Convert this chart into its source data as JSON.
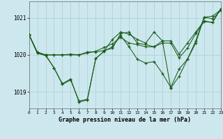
{
  "background_color": "#cce8ee",
  "grid_color": "#aaccd4",
  "line_color": "#1a5c1a",
  "title": "Graphe pression niveau de la mer (hPa)",
  "xlim": [
    0,
    23
  ],
  "ylim": [
    1018.55,
    1021.45
  ],
  "yticks": [
    1019,
    1020,
    1021
  ],
  "ytick_labels": [
    "1019",
    "1020",
    "1021"
  ],
  "series": [
    [
      1020.55,
      1020.05,
      1020.0,
      1020.0,
      1020.0,
      1020.0,
      1020.0,
      1020.05,
      1020.1,
      1020.2,
      1020.3,
      1020.48,
      1020.32,
      1020.28,
      1020.22,
      1020.22,
      1020.32,
      1020.32,
      1019.92,
      1020.18,
      1020.58,
      1020.9,
      1020.88,
      1021.25
    ],
    [
      1020.55,
      1020.05,
      1020.0,
      1020.0,
      1020.0,
      1020.02,
      1020.0,
      1020.08,
      1020.08,
      1020.12,
      1020.18,
      1020.58,
      1020.62,
      1020.32,
      1020.28,
      1020.22,
      1020.38,
      1020.38,
      1020.02,
      1020.32,
      1020.62,
      1020.92,
      1020.88,
      1021.25
    ],
    [
      1020.55,
      1020.08,
      1020.0,
      1019.65,
      1019.2,
      1019.32,
      1018.75,
      1018.8,
      1019.9,
      1020.1,
      1020.42,
      1020.62,
      1020.56,
      1020.42,
      1020.32,
      1020.62,
      1020.38,
      1019.1,
      1019.42,
      1019.88,
      1020.38,
      1021.02,
      1020.98,
      1021.2
    ],
    [
      1020.55,
      1020.05,
      1019.98,
      1019.65,
      1019.22,
      1019.35,
      1018.72,
      1018.78,
      1019.9,
      1020.1,
      1020.22,
      1020.52,
      1020.22,
      1019.88,
      1019.78,
      1019.82,
      1019.5,
      1019.12,
      1019.62,
      1019.88,
      1020.32,
      1021.02,
      1021.05,
      1021.22
    ]
  ],
  "xtick_labels": [
    "0",
    "1",
    "2",
    "3",
    "4",
    "5",
    "6",
    "7",
    "8",
    "9",
    "10",
    "11",
    "12",
    "13",
    "14",
    "15",
    "16",
    "17",
    "18",
    "19",
    "20",
    "21",
    "22",
    "23"
  ]
}
